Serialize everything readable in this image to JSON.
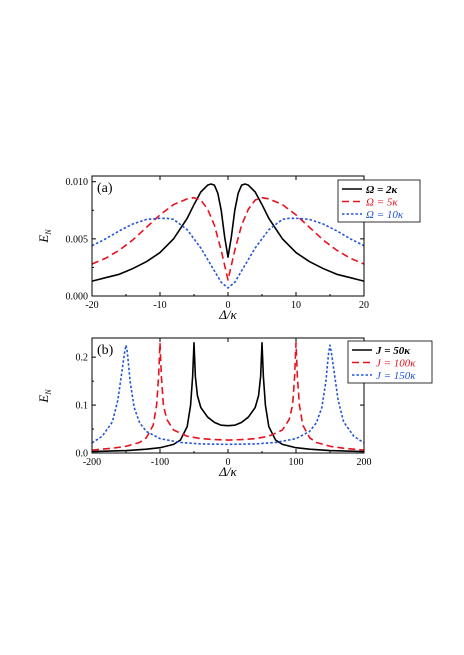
{
  "chart_data": [
    {
      "type": "line",
      "panel_label": "(a)",
      "xlabel": "Δ/κ",
      "ylabel": "E_N",
      "xlim": [
        -20,
        20
      ],
      "ylim": [
        0,
        0.0105
      ],
      "xticks": [
        "-20",
        "-10",
        "0",
        "10",
        "20"
      ],
      "yticks": [
        "0.000",
        "0.005",
        "0.010"
      ],
      "legend_position": "top-right",
      "series": [
        {
          "name": "Ω = 2κ",
          "color": "#000000",
          "dash": "solid",
          "x": [
            -20,
            -18,
            -16,
            -14,
            -12,
            -10,
            -8,
            -6,
            -5,
            -4,
            -3,
            -2.5,
            -2,
            -1.5,
            -1,
            -0.5,
            0,
            0.5,
            1,
            1.5,
            2,
            2.5,
            3,
            4,
            5,
            6,
            8,
            10,
            12,
            14,
            16,
            18,
            20
          ],
          "y": [
            0.0013,
            0.0016,
            0.0019,
            0.0024,
            0.003,
            0.0038,
            0.005,
            0.0068,
            0.008,
            0.0091,
            0.0097,
            0.0098,
            0.0097,
            0.009,
            0.0075,
            0.0052,
            0.0034,
            0.0052,
            0.0075,
            0.009,
            0.0097,
            0.0098,
            0.0097,
            0.0091,
            0.008,
            0.0068,
            0.005,
            0.0038,
            0.003,
            0.0024,
            0.0019,
            0.0016,
            0.0013
          ]
        },
        {
          "name": "Ω = 5κ",
          "color": "#e8121e",
          "dash": "dash",
          "x": [
            -20,
            -18,
            -16,
            -14,
            -12,
            -10,
            -8,
            -6,
            -5,
            -4,
            -3,
            -2,
            -1,
            0,
            1,
            2,
            3,
            4,
            5,
            6,
            8,
            10,
            12,
            14,
            16,
            18,
            20
          ],
          "y": [
            0.0028,
            0.0033,
            0.004,
            0.0049,
            0.006,
            0.0071,
            0.008,
            0.0085,
            0.0086,
            0.0084,
            0.0076,
            0.0062,
            0.004,
            0.0014,
            0.004,
            0.0062,
            0.0076,
            0.0084,
            0.0086,
            0.0085,
            0.008,
            0.0071,
            0.006,
            0.0049,
            0.004,
            0.0033,
            0.0028
          ]
        },
        {
          "name": "Ω = 10κ",
          "color": "#2355d6",
          "dash": "dot",
          "x": [
            -20,
            -18,
            -16,
            -14,
            -12,
            -10,
            -9,
            -8,
            -6,
            -4,
            -2,
            -1,
            0,
            1,
            2,
            4,
            6,
            8,
            9,
            10,
            12,
            14,
            16,
            18,
            20
          ],
          "y": [
            0.0044,
            0.005,
            0.0057,
            0.0063,
            0.0067,
            0.0068,
            0.0068,
            0.0067,
            0.0058,
            0.0042,
            0.0022,
            0.0012,
            0.0007,
            0.0012,
            0.0022,
            0.0042,
            0.0058,
            0.0067,
            0.0068,
            0.0068,
            0.0067,
            0.0063,
            0.0057,
            0.005,
            0.0044
          ]
        }
      ]
    },
    {
      "type": "line",
      "panel_label": "(b)",
      "xlabel": "Δ/κ",
      "ylabel": "E_N",
      "xlim": [
        -200,
        200
      ],
      "ylim": [
        0,
        0.24
      ],
      "xticks": [
        "-200",
        "-100",
        "0",
        "100",
        "200"
      ],
      "yticks": [
        "0.0",
        "0.1",
        "0.2"
      ],
      "legend_position": "top-right",
      "series": [
        {
          "name": "J = 50κ",
          "color": "#000000",
          "dash": "solid",
          "x": [
            -200,
            -150,
            -120,
            -100,
            -80,
            -70,
            -60,
            -55,
            -52,
            -50,
            -48,
            -45,
            -40,
            -30,
            -20,
            -10,
            0,
            10,
            20,
            30,
            40,
            45,
            48,
            50,
            52,
            55,
            60,
            70,
            80,
            100,
            120,
            150,
            200
          ],
          "y": [
            0.003,
            0.005,
            0.008,
            0.011,
            0.018,
            0.027,
            0.055,
            0.1,
            0.16,
            0.23,
            0.16,
            0.12,
            0.095,
            0.075,
            0.064,
            0.058,
            0.057,
            0.058,
            0.064,
            0.075,
            0.095,
            0.12,
            0.16,
            0.23,
            0.16,
            0.1,
            0.055,
            0.027,
            0.018,
            0.011,
            0.008,
            0.005,
            0.003
          ]
        },
        {
          "name": "J = 100κ",
          "color": "#e8121e",
          "dash": "dash",
          "x": [
            -200,
            -170,
            -150,
            -130,
            -120,
            -110,
            -105,
            -102,
            -100,
            -98,
            -95,
            -90,
            -80,
            -60,
            -40,
            -20,
            0,
            20,
            40,
            60,
            80,
            90,
            95,
            98,
            100,
            102,
            105,
            110,
            120,
            130,
            150,
            170,
            200
          ],
          "y": [
            0.006,
            0.01,
            0.014,
            0.022,
            0.032,
            0.058,
            0.1,
            0.16,
            0.23,
            0.16,
            0.1,
            0.07,
            0.048,
            0.035,
            0.03,
            0.028,
            0.027,
            0.028,
            0.03,
            0.035,
            0.048,
            0.07,
            0.1,
            0.16,
            0.23,
            0.16,
            0.1,
            0.058,
            0.032,
            0.022,
            0.014,
            0.01,
            0.006
          ]
        },
        {
          "name": "J = 150κ",
          "color": "#2355d6",
          "dash": "dot",
          "x": [
            -200,
            -185,
            -170,
            -162,
            -156,
            -152,
            -150,
            -148,
            -144,
            -138,
            -130,
            -120,
            -100,
            -70,
            -40,
            0,
            40,
            70,
            100,
            120,
            130,
            138,
            144,
            148,
            150,
            152,
            156,
            162,
            170,
            185,
            200
          ],
          "y": [
            0.021,
            0.035,
            0.065,
            0.11,
            0.17,
            0.21,
            0.225,
            0.21,
            0.15,
            0.095,
            0.063,
            0.045,
            0.03,
            0.022,
            0.019,
            0.018,
            0.019,
            0.022,
            0.03,
            0.045,
            0.063,
            0.095,
            0.15,
            0.21,
            0.225,
            0.21,
            0.17,
            0.11,
            0.065,
            0.035,
            0.021
          ]
        }
      ]
    }
  ]
}
